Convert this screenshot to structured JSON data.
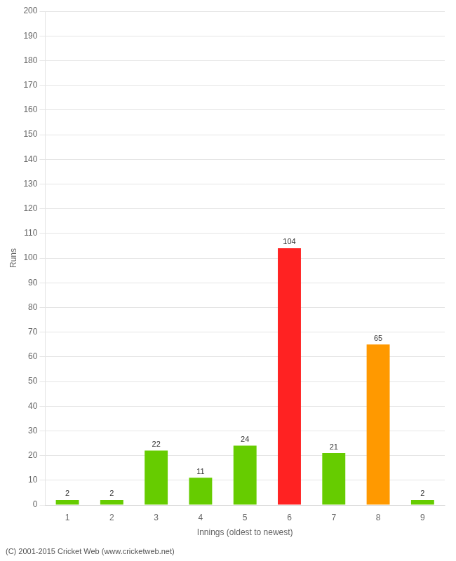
{
  "chart_data": {
    "type": "bar",
    "categories": [
      "1",
      "2",
      "3",
      "4",
      "5",
      "6",
      "7",
      "8",
      "9"
    ],
    "values": [
      2,
      2,
      22,
      11,
      24,
      104,
      21,
      65,
      2
    ],
    "colors": [
      "#66cc00",
      "#66cc00",
      "#66cc00",
      "#66cc00",
      "#66cc00",
      "#ff2222",
      "#66cc00",
      "#ff9900",
      "#66cc00"
    ],
    "xlabel": "Innings (oldest to newest)",
    "ylabel": "Runs",
    "ylim": [
      0,
      200
    ],
    "yticks": [
      0,
      10,
      20,
      30,
      40,
      50,
      60,
      70,
      80,
      90,
      100,
      110,
      120,
      130,
      140,
      150,
      160,
      170,
      180,
      190,
      200
    ],
    "grid": "y",
    "data_labels": true,
    "annotations": [
      "(C) 2001-2015 Cricket Web (www.cricketweb.net)"
    ]
  }
}
